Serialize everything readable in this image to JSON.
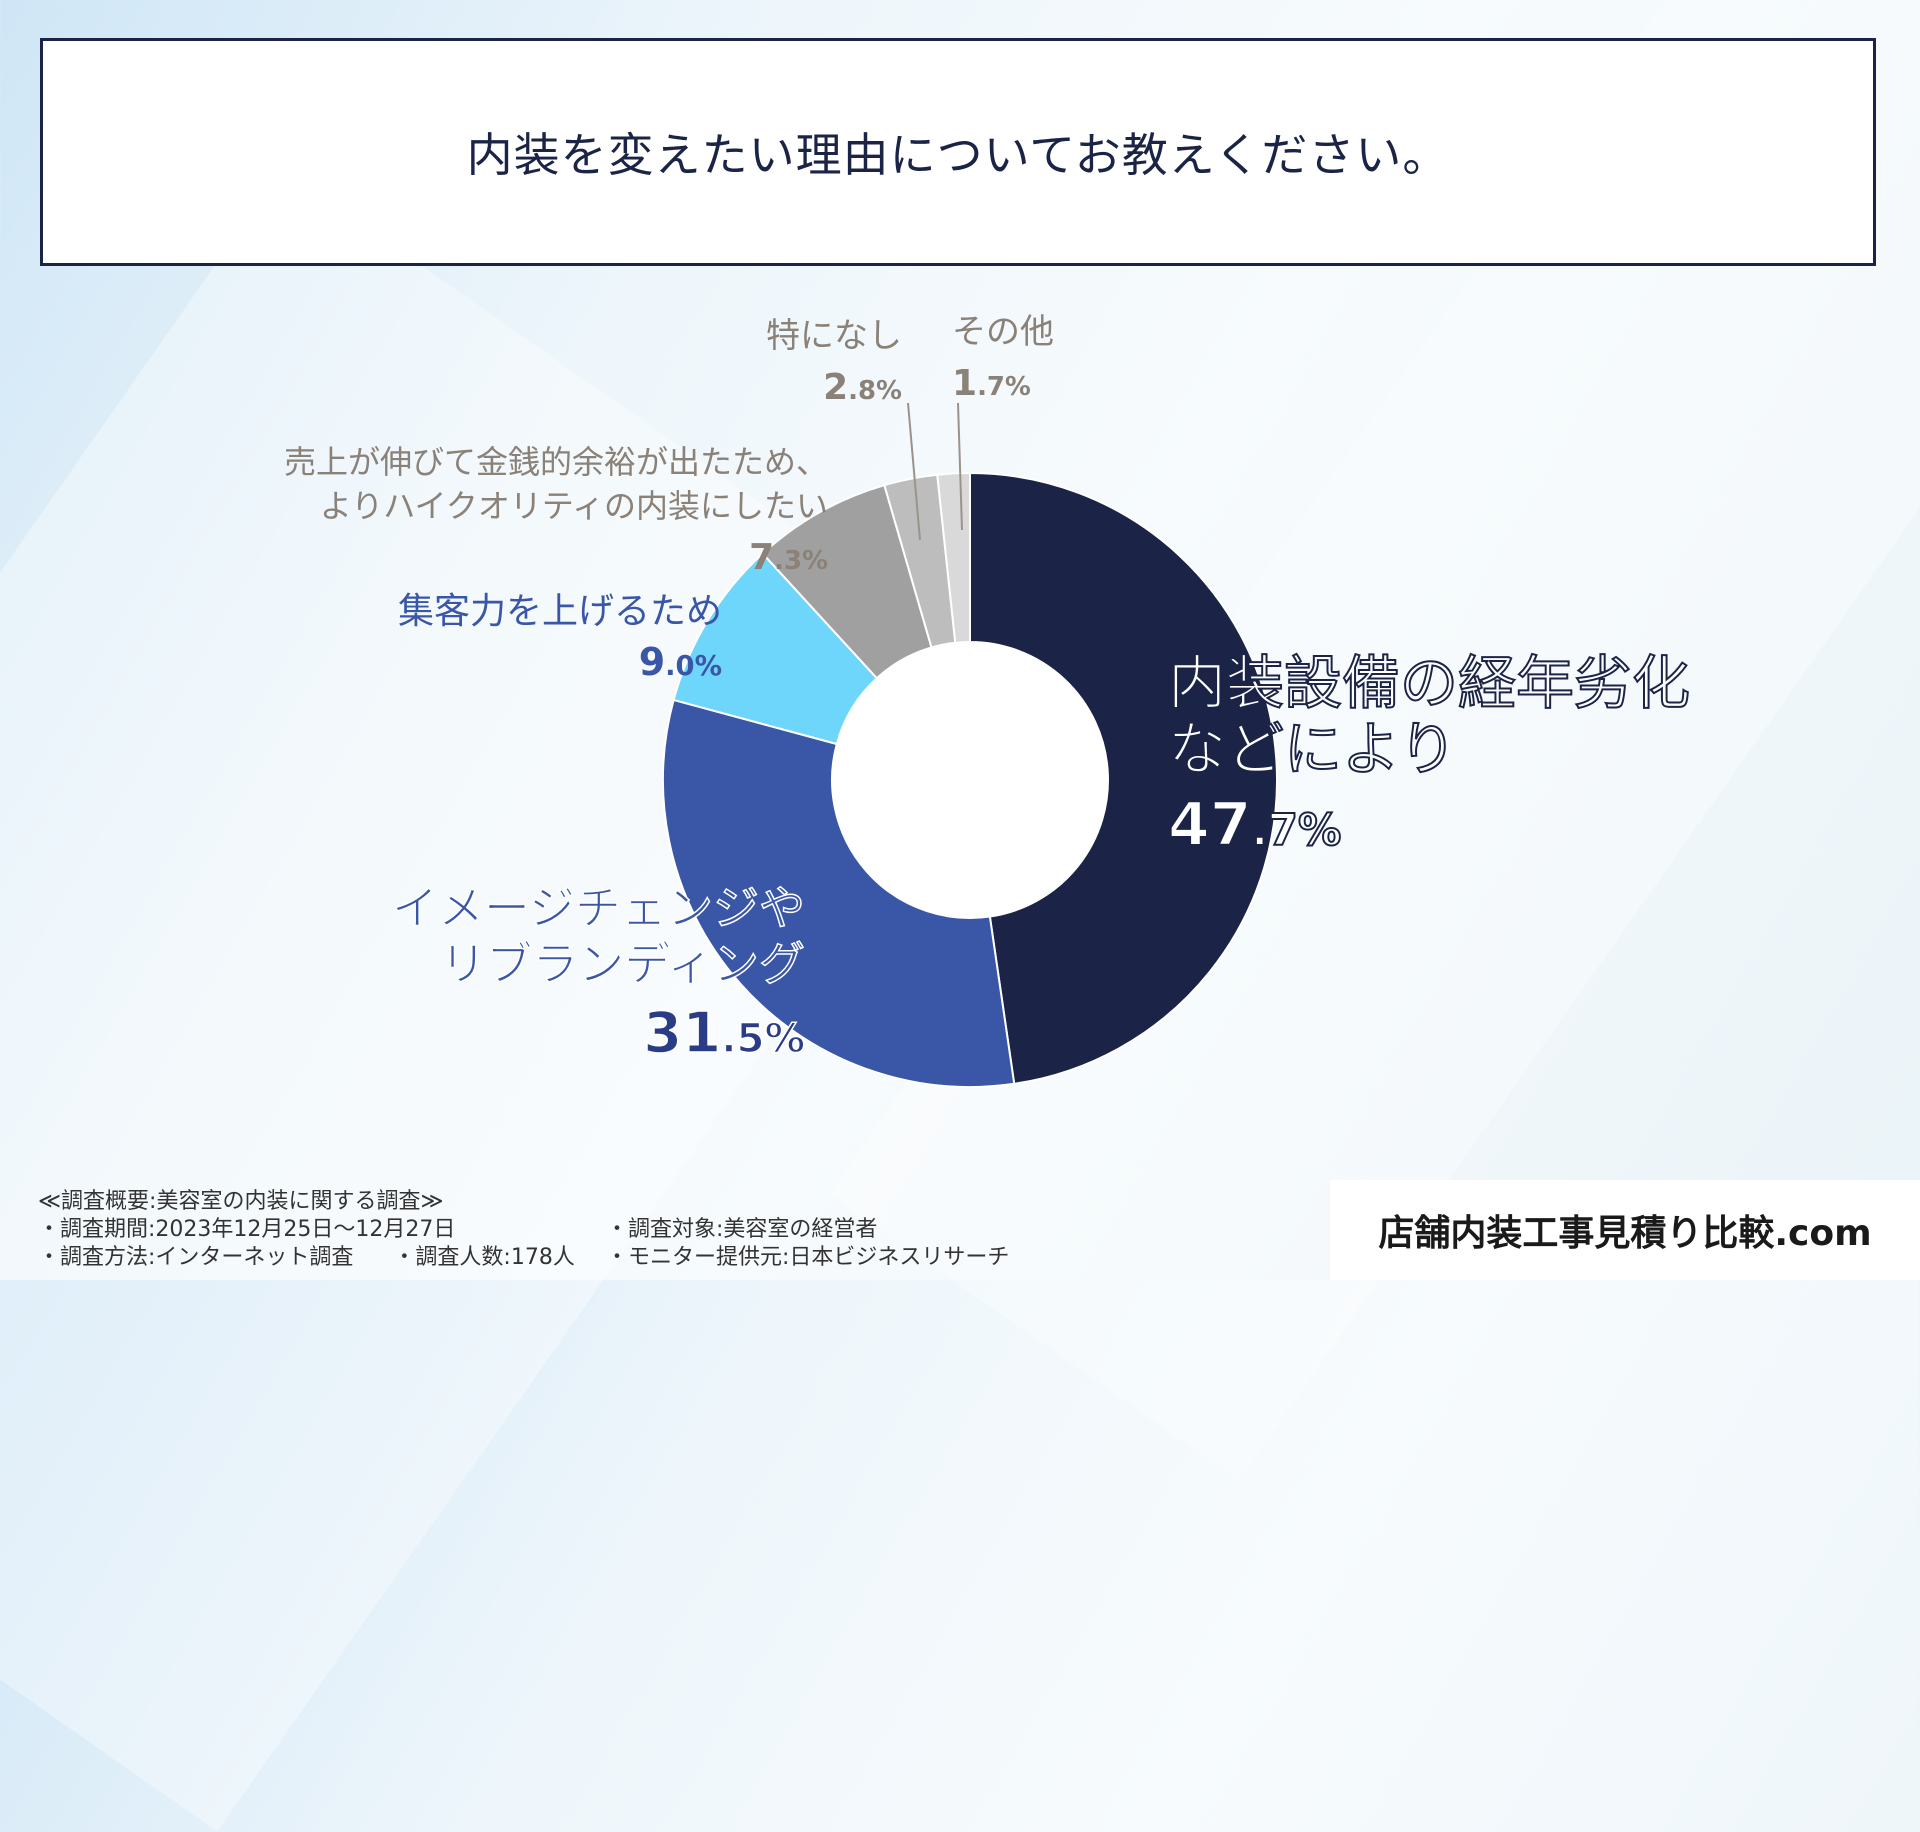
{
  "title": "内装を変えたい理由についてお教えください。",
  "chart_data": {
    "type": "pie",
    "donut": true,
    "slices": [
      {
        "label_lines": [
          "内装設備の経年劣化",
          "などにより"
        ],
        "value": 47.7,
        "pct_int": "47",
        "pct_frac": ".7%",
        "color": "#1b2447"
      },
      {
        "label_lines": [
          "イメージチェンジや",
          "リブランディング"
        ],
        "value": 31.5,
        "pct_int": "31",
        "pct_frac": ".5%",
        "color": "#3a56a7"
      },
      {
        "label_lines": [
          "集客力を上げるため"
        ],
        "value": 9.0,
        "pct_int": "9",
        "pct_frac": ".0%",
        "color": "#6fd6fb"
      },
      {
        "label_lines": [
          "売上が伸びて金銭的余裕が出たため、",
          "よりハイクオリティの内装にしたい"
        ],
        "value": 7.3,
        "pct_int": "7",
        "pct_frac": ".3%",
        "color": "#a0a0a0"
      },
      {
        "label_lines": [
          "特になし"
        ],
        "value": 2.8,
        "pct_int": "2",
        "pct_frac": ".8%",
        "color": "#bdbdbd"
      },
      {
        "label_lines": [
          "その他"
        ],
        "value": 1.7,
        "pct_int": "1",
        "pct_frac": ".7%",
        "color": "#d9d9d9"
      }
    ]
  },
  "footer": {
    "summary": "≪調査概要:美容室の内装に関する調査≫",
    "period": "・調査期間:2023年12月25日〜12月27日",
    "method": "・調査方法:インターネット調査",
    "count": "・調査人数:178人",
    "target": "・調査対象:美容室の経営者",
    "provider": "・モニター提供元:日本ビジネスリサーチ"
  },
  "brand": "店舗内装工事見積り比較.com"
}
